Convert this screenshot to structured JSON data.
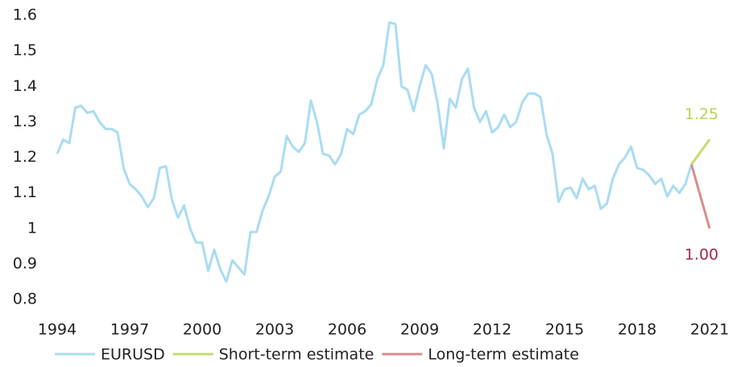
{
  "chart_data": {
    "type": "line",
    "xlim": [
      1994,
      2021
    ],
    "xticks": [
      1994,
      1997,
      2000,
      2003,
      2006,
      2009,
      2012,
      2015,
      2018,
      2021
    ],
    "ylim": [
      0.8,
      1.6
    ],
    "yticks": [
      0.8,
      0.9,
      1,
      1.1,
      1.2,
      1.3,
      1.4,
      1.5,
      1.6
    ],
    "grid": false,
    "legend": "bottom",
    "series": [
      {
        "name": "EURUSD",
        "color": "#a9dcf2",
        "x": [
          1994,
          1994.25,
          1994.5,
          1994.75,
          1995,
          1995.25,
          1995.5,
          1995.75,
          1996,
          1996.25,
          1996.5,
          1996.75,
          1997,
          1997.25,
          1997.5,
          1997.75,
          1998,
          1998.25,
          1998.5,
          1998.75,
          1999,
          1999.25,
          1999.5,
          1999.75,
          2000,
          2000.25,
          2000.5,
          2000.75,
          2001,
          2001.25,
          2001.5,
          2001.75,
          2002,
          2002.25,
          2002.5,
          2002.75,
          2003,
          2003.25,
          2003.5,
          2003.75,
          2004,
          2004.25,
          2004.5,
          2004.75,
          2005,
          2005.25,
          2005.5,
          2005.75,
          2006,
          2006.25,
          2006.5,
          2006.75,
          2007,
          2007.25,
          2007.5,
          2007.75,
          2008,
          2008.25,
          2008.5,
          2008.75,
          2009,
          2009.25,
          2009.5,
          2009.75,
          2010,
          2010.25,
          2010.5,
          2010.75,
          2011,
          2011.25,
          2011.5,
          2011.75,
          2012,
          2012.25,
          2012.5,
          2012.75,
          2013,
          2013.25,
          2013.5,
          2013.75,
          2014,
          2014.25,
          2014.5,
          2014.75,
          2015,
          2015.25,
          2015.5,
          2015.75,
          2016,
          2016.25,
          2016.5,
          2016.75,
          2017,
          2017.25,
          2017.5,
          2017.75,
          2018,
          2018.25,
          2018.5,
          2018.75,
          2019,
          2019.25,
          2019.5,
          2019.75,
          2020,
          2020.25
        ],
        "values": [
          1.21,
          1.25,
          1.24,
          1.34,
          1.345,
          1.325,
          1.33,
          1.3,
          1.28,
          1.28,
          1.27,
          1.17,
          1.125,
          1.11,
          1.09,
          1.06,
          1.085,
          1.17,
          1.175,
          1.08,
          1.03,
          1.065,
          1.0,
          0.96,
          0.96,
          0.88,
          0.94,
          0.885,
          0.85,
          0.91,
          0.89,
          0.87,
          0.99,
          0.99,
          1.05,
          1.09,
          1.145,
          1.16,
          1.26,
          1.23,
          1.215,
          1.24,
          1.36,
          1.3,
          1.21,
          1.205,
          1.18,
          1.21,
          1.28,
          1.265,
          1.32,
          1.33,
          1.35,
          1.42,
          1.46,
          1.58,
          1.575,
          1.4,
          1.39,
          1.33,
          1.4,
          1.46,
          1.435,
          1.35,
          1.225,
          1.365,
          1.34,
          1.42,
          1.45,
          1.34,
          1.3,
          1.33,
          1.27,
          1.285,
          1.32,
          1.285,
          1.3,
          1.355,
          1.38,
          1.38,
          1.37,
          1.265,
          1.21,
          1.075,
          1.11,
          1.115,
          1.085,
          1.14,
          1.11,
          1.12,
          1.055,
          1.07,
          1.14,
          1.18,
          1.2,
          1.23,
          1.17,
          1.165,
          1.15,
          1.125,
          1.14,
          1.09,
          1.12,
          1.1,
          1.125,
          1.18
        ]
      },
      {
        "name": "Short-term estimate",
        "color": "#c4dc6c",
        "x": [
          2020.25,
          2021
        ],
        "values": [
          1.18,
          1.25
        ],
        "end_label": "1.25",
        "label_color": "#b5d255"
      },
      {
        "name": "Long-term estimate",
        "color": "#d98c8c",
        "x": [
          2020.25,
          2021
        ],
        "values": [
          1.18,
          1.0
        ],
        "end_label": "1.00",
        "label_color": "#a3284c"
      }
    ]
  }
}
